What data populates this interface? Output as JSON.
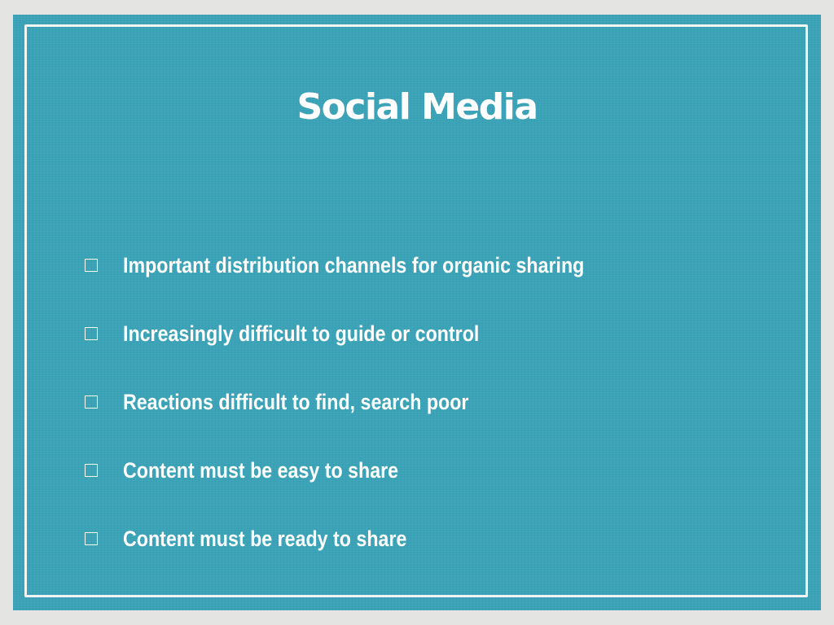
{
  "slide": {
    "title": "Social Media",
    "bullets": [
      {
        "text": "Important distribution channels for organic sharing"
      },
      {
        "text": "Increasingly difficult to guide or control"
      },
      {
        "text": "Reactions difficult to find, search poor"
      },
      {
        "text": "Content must be easy to share"
      },
      {
        "text": "Content must be ready to share"
      }
    ],
    "bullet_icon": "empty-square-icon"
  },
  "colors": {
    "background": "#e4e4e2",
    "slide_fill": "#3aa3b8",
    "text": "#ffffff",
    "frame": "#f2f4f3"
  }
}
